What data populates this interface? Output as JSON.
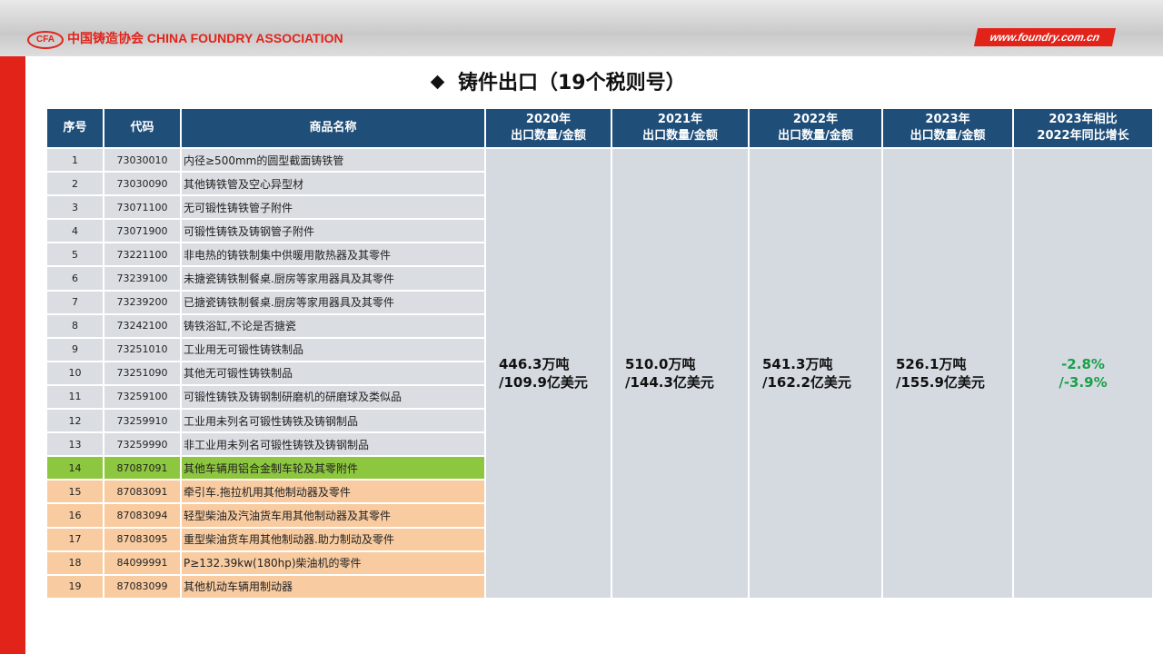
{
  "header": {
    "logo": "CFA",
    "org": "中国铸造协会 CHINA FOUNDRY ASSOCIATION",
    "site": "www.foundry.com.cn"
  },
  "title": "铸件出口（19个税则号）",
  "table": {
    "headers": [
      [
        "序号"
      ],
      [
        "代码"
      ],
      [
        "商品名称"
      ],
      [
        "2020年",
        "出口数量/金额"
      ],
      [
        "2021年",
        "出口数量/金额"
      ],
      [
        "2022年",
        "出口数量/金额"
      ],
      [
        "2023年",
        "出口数量/金额"
      ],
      [
        "2023年相比",
        "2022年同比增长"
      ]
    ],
    "rows": [
      [
        "1",
        "73030010",
        "内径≥500mm的圆型截面铸铁管"
      ],
      [
        "2",
        "73030090",
        "其他铸铁管及空心异型材"
      ],
      [
        "3",
        "73071100",
        "无可锻性铸铁管子附件"
      ],
      [
        "4",
        "73071900",
        "可锻性铸铁及铸钢管子附件"
      ],
      [
        "5",
        "73221100",
        "非电热的铸铁制集中供暖用散热器及其零件"
      ],
      [
        "6",
        "73239100",
        "未搪瓷铸铁制餐桌.厨房等家用器具及其零件"
      ],
      [
        "7",
        "73239200",
        "已搪瓷铸铁制餐桌.厨房等家用器具及其零件"
      ],
      [
        "8",
        "73242100",
        "铸铁浴缸,不论是否搪瓷"
      ],
      [
        "9",
        "73251010",
        "工业用无可锻性铸铁制品"
      ],
      [
        "10",
        "73251090",
        "其他无可锻性铸铁制品"
      ],
      [
        "11",
        "73259100",
        "可锻性铸铁及铸钢制研磨机的研磨球及类似品"
      ],
      [
        "12",
        "73259910",
        "工业用未列名可锻性铸铁及铸钢制品"
      ],
      [
        "13",
        "73259990",
        "非工业用未列名可锻性铸铁及铸钢制品"
      ],
      [
        "14",
        "87087091",
        "其他车辆用铝合金制车轮及其零附件"
      ],
      [
        "15",
        "87083091",
        "牵引车.拖拉机用其他制动器及零件"
      ],
      [
        "16",
        "87083094",
        "轻型柴油及汽油货车用其他制动器及其零件"
      ],
      [
        "17",
        "87083095",
        "重型柴油货车用其他制动器.助力制动及零件"
      ],
      [
        "18",
        "84099991",
        "P≥132.39kw(180hp)柴油机的零件"
      ],
      [
        "19",
        "87083099",
        "其他机动车辆用制动器"
      ]
    ],
    "totals": [
      [
        "446.3万吨",
        "/109.9亿美元"
      ],
      [
        "510.0万吨",
        "/144.3亿美元"
      ],
      [
        "541.3万吨",
        "/162.2亿美元"
      ],
      [
        "526.1万吨",
        "/155.9亿美元"
      ],
      [
        "-2.8%",
        "/-3.9%"
      ]
    ]
  }
}
